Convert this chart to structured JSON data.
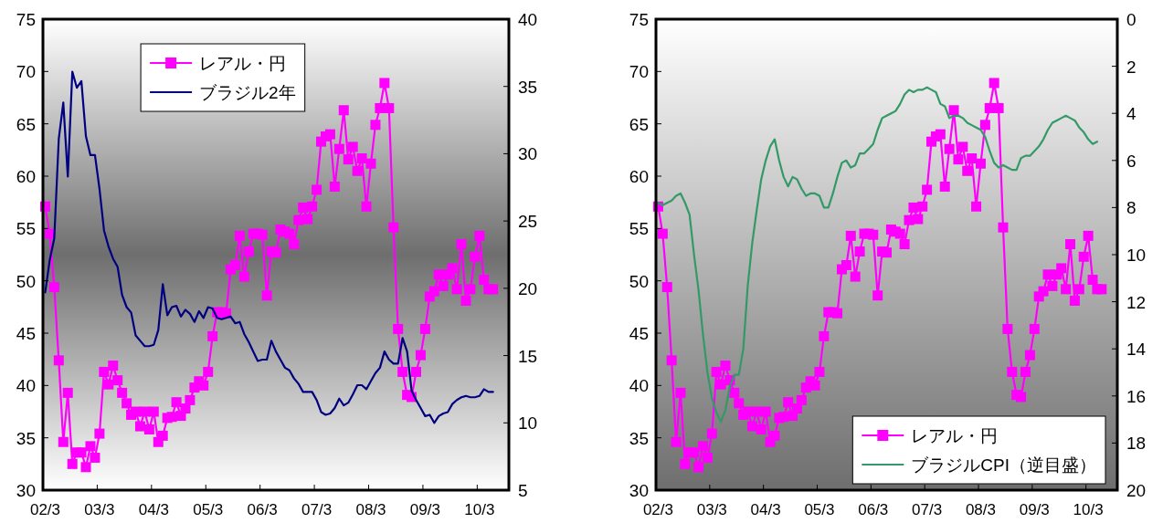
{
  "chart_data": [
    {
      "type": "line",
      "categories": [
        "02/3",
        null,
        null,
        null,
        null,
        null,
        null,
        null,
        null,
        null,
        null,
        null,
        "03/3",
        null,
        null,
        null,
        null,
        null,
        null,
        null,
        null,
        null,
        null,
        null,
        "04/3",
        null,
        null,
        null,
        null,
        null,
        null,
        null,
        null,
        null,
        null,
        null,
        "05/3",
        null,
        null,
        null,
        null,
        null,
        null,
        null,
        null,
        null,
        null,
        null,
        "06/3",
        null,
        null,
        null,
        null,
        null,
        null,
        null,
        null,
        null,
        null,
        null,
        "07/3",
        null,
        null,
        null,
        null,
        null,
        null,
        null,
        null,
        null,
        null,
        null,
        "08/3",
        null,
        null,
        null,
        null,
        null,
        null,
        null,
        null,
        null,
        null,
        null,
        "09/3",
        null,
        null,
        null,
        null,
        null,
        null,
        null,
        null,
        null,
        null,
        null,
        "10/3",
        null,
        null,
        null,
        null,
        null,
        null
      ],
      "ylim": [
        30,
        75
      ],
      "yticks": [
        30,
        35,
        40,
        45,
        50,
        55,
        60,
        65,
        70,
        75
      ],
      "y2lim": [
        5,
        40
      ],
      "y2ticks": [
        5,
        10,
        15,
        20,
        25,
        30,
        35,
        40
      ],
      "legend": "top left",
      "grid": false,
      "series": [
        {
          "name": "レアル・円",
          "color": "#ff00ff",
          "marker": "square",
          "values": [
            57.1,
            54.5,
            49.4,
            42.4,
            34.6,
            39.3,
            32.5,
            33.6,
            33.6,
            32.2,
            34.2,
            33.1,
            35.4,
            41.3,
            40.1,
            41.9,
            40.5,
            39.3,
            38.3,
            37.2,
            37.5,
            36.1,
            37.5,
            35.8,
            37.5,
            34.6,
            35.2,
            36.9,
            37.0,
            38.4,
            37.1,
            37.8,
            38.6,
            39.8,
            40.4,
            40.0,
            41.3,
            44.7,
            47.0,
            47.0,
            46.9,
            51.1,
            51.5,
            54.3,
            50.4,
            52.8,
            54.5,
            54.5,
            54.4,
            48.6,
            52.8,
            52.7,
            54.9,
            54.7,
            54.5,
            53.5,
            55.8,
            57.0,
            55.9,
            57.1,
            58.7,
            63.3,
            63.8,
            64.0,
            59.0,
            62.6,
            66.3,
            61.6,
            62.8,
            60.5,
            61.7,
            57.1,
            61.2,
            64.9,
            66.5,
            68.9,
            66.5,
            55.1,
            45.4,
            41.3,
            39.1,
            38.9,
            41.3,
            42.9,
            45.4,
            48.5,
            49.0,
            50.6,
            49.5,
            50.6,
            51.2,
            49.2,
            53.5,
            48.1,
            49.2,
            52.3,
            54.3,
            50.1,
            49.2,
            49.2,
            null,
            null,
            null
          ]
        },
        {
          "name": "ブラジル2年",
          "color": "#000080",
          "marker": "none",
          "axis": "y2",
          "values": [
            19.7,
            22.1,
            23.7,
            31.1,
            33.8,
            28.3,
            36.1,
            34.9,
            35.4,
            31.3,
            29.9,
            29.9,
            27.4,
            24.3,
            23.1,
            22.2,
            21.6,
            19.5,
            18.6,
            18.2,
            16.5,
            16.1,
            15.7,
            15.7,
            15.8,
            16.9,
            20.3,
            18.0,
            18.6,
            18.7,
            17.9,
            18.4,
            18.1,
            17.5,
            18.3,
            17.8,
            18.6,
            18.5,
            17.8,
            17.7,
            17.8,
            17.9,
            17.4,
            17.5,
            16.6,
            16.0,
            15.3,
            14.6,
            14.7,
            14.7,
            16.1,
            15.3,
            14.7,
            14.1,
            13.9,
            13.3,
            12.9,
            12.3,
            12.3,
            12.3,
            11.7,
            10.8,
            10.6,
            10.7,
            11.1,
            11.8,
            11.3,
            11.5,
            12.1,
            12.8,
            12.8,
            12.5,
            13.1,
            13.7,
            14.1,
            15.3,
            14.7,
            14.4,
            14.4,
            16.3,
            15.3,
            12.4,
            11.7,
            11.1,
            10.5,
            10.6,
            10.0,
            10.5,
            10.7,
            10.8,
            11.4,
            11.7,
            11.9,
            12.0,
            11.9,
            11.9,
            12.0,
            12.5,
            12.3,
            12.3,
            null,
            null,
            null
          ]
        }
      ]
    },
    {
      "type": "line",
      "categories": [
        "02/3",
        null,
        null,
        null,
        null,
        null,
        null,
        null,
        null,
        null,
        null,
        null,
        "03/3",
        null,
        null,
        null,
        null,
        null,
        null,
        null,
        null,
        null,
        null,
        null,
        "04/3",
        null,
        null,
        null,
        null,
        null,
        null,
        null,
        null,
        null,
        null,
        null,
        "05/3",
        null,
        null,
        null,
        null,
        null,
        null,
        null,
        null,
        null,
        null,
        null,
        "06/3",
        null,
        null,
        null,
        null,
        null,
        null,
        null,
        null,
        null,
        null,
        null,
        "07/3",
        null,
        null,
        null,
        null,
        null,
        null,
        null,
        null,
        null,
        null,
        null,
        "08/3",
        null,
        null,
        null,
        null,
        null,
        null,
        null,
        null,
        null,
        null,
        null,
        "09/3",
        null,
        null,
        null,
        null,
        null,
        null,
        null,
        null,
        null,
        null,
        null,
        "10/3",
        null,
        null,
        null,
        null,
        null,
        null
      ],
      "ylim": [
        30,
        75
      ],
      "yticks": [
        30,
        35,
        40,
        45,
        50,
        55,
        60,
        65,
        70,
        75
      ],
      "y2lim": [
        20,
        0
      ],
      "y2ticks": [
        0,
        2,
        4,
        6,
        8,
        10,
        12,
        14,
        16,
        18,
        20
      ],
      "legend": "bottom right",
      "grid": false,
      "series": [
        {
          "name": "レアル・円",
          "color": "#ff00ff",
          "marker": "square",
          "values": [
            57.1,
            54.5,
            49.4,
            42.4,
            34.6,
            39.3,
            32.5,
            33.6,
            33.6,
            32.2,
            34.2,
            33.1,
            35.4,
            41.3,
            40.1,
            41.9,
            40.5,
            39.3,
            38.3,
            37.2,
            37.5,
            36.1,
            37.5,
            35.8,
            37.5,
            34.6,
            35.2,
            36.9,
            37.0,
            38.4,
            37.1,
            37.8,
            38.6,
            39.8,
            40.4,
            40.0,
            41.3,
            44.7,
            47.0,
            47.0,
            46.9,
            51.1,
            51.5,
            54.3,
            50.4,
            52.8,
            54.5,
            54.5,
            54.4,
            48.6,
            52.8,
            52.7,
            54.9,
            54.7,
            54.5,
            53.5,
            55.8,
            57.0,
            55.9,
            57.1,
            58.7,
            63.3,
            63.8,
            64.0,
            59.0,
            62.6,
            66.3,
            61.6,
            62.8,
            60.5,
            61.7,
            57.1,
            61.2,
            64.9,
            66.5,
            68.9,
            66.5,
            55.1,
            45.4,
            41.3,
            39.1,
            38.9,
            41.3,
            42.9,
            45.4,
            48.5,
            49.0,
            50.6,
            49.5,
            50.6,
            51.2,
            49.2,
            53.5,
            48.1,
            49.2,
            52.3,
            54.3,
            50.1,
            49.2,
            49.2,
            null,
            null,
            null
          ]
        },
        {
          "name": "ブラジルCPI（逆目盛）",
          "color": "#339966",
          "marker": "none",
          "axis": "y2",
          "values": [
            7.8,
            7.9,
            7.8,
            7.7,
            7.5,
            7.4,
            7.8,
            8.3,
            10.0,
            11.5,
            13.4,
            15.0,
            16.1,
            16.7,
            17.1,
            16.6,
            15.6,
            15.1,
            15.1,
            14.0,
            11.3,
            9.5,
            8.1,
            6.8,
            6.0,
            5.4,
            5.1,
            6.0,
            6.7,
            7.1,
            6.7,
            6.8,
            7.2,
            7.5,
            7.4,
            7.4,
            7.5,
            8.0,
            8.0,
            7.4,
            6.7,
            6.1,
            6.0,
            6.3,
            6.2,
            5.7,
            5.7,
            5.5,
            5.3,
            4.7,
            4.2,
            4.1,
            4.0,
            3.9,
            3.6,
            3.2,
            3.0,
            3.1,
            3.0,
            3.0,
            2.9,
            3.0,
            3.1,
            3.6,
            3.7,
            4.2,
            4.1,
            4.1,
            4.2,
            4.4,
            4.5,
            4.6,
            4.7,
            5.0,
            5.6,
            6.1,
            6.3,
            6.2,
            6.3,
            6.4,
            6.4,
            5.9,
            5.8,
            5.8,
            5.6,
            5.4,
            5.1,
            4.7,
            4.4,
            4.3,
            4.2,
            4.1,
            4.2,
            4.3,
            4.6,
            4.8,
            5.1,
            5.3,
            5.2,
            null,
            null,
            null,
            null
          ]
        }
      ]
    }
  ]
}
